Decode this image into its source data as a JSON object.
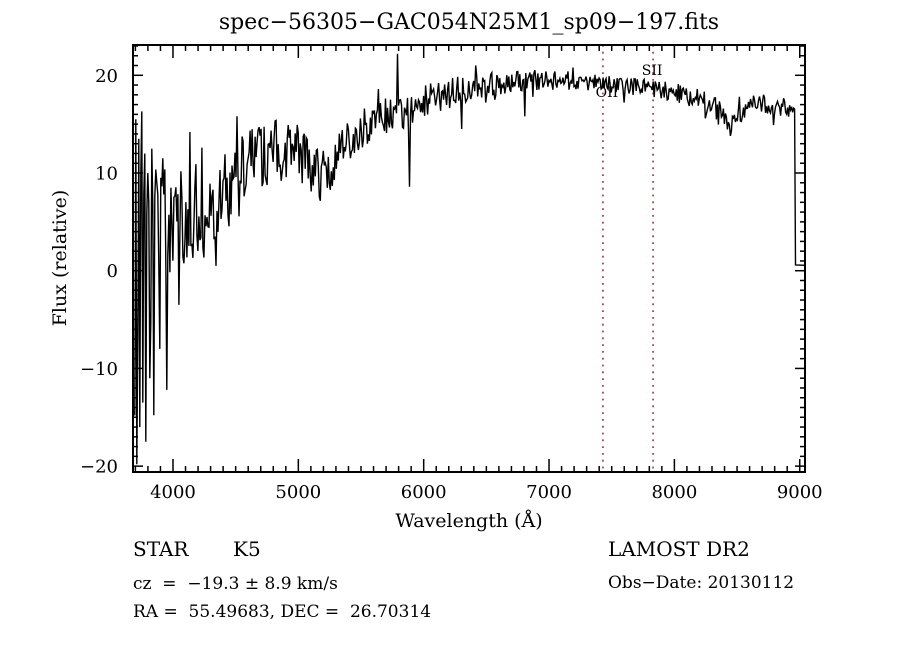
{
  "figure": {
    "background": "#ffffff",
    "foreground": "#000000"
  },
  "chart_data": {
    "type": "line",
    "title": "spec−56305−GAC054N25M1_sp09−197.fits",
    "xlabel": "Wavelength (Å)",
    "ylabel": "Flux (relative)",
    "x_ticks": [
      4000,
      5000,
      6000,
      7000,
      8000,
      9000
    ],
    "x_minor_step": 100,
    "y_ticks": [
      -20,
      -10,
      0,
      10,
      20
    ],
    "y_minor_step": 1,
    "xlim": [
      3681,
      9042
    ],
    "ylim": [
      -20.6,
      23.1
    ],
    "grid": false,
    "legend": "none",
    "line_color": "#000000",
    "reference_lines": {
      "color": "#993333",
      "style": "dotted",
      "items": [
        {
          "label": "OII",
          "wavelength": 7430
        },
        {
          "label": "SII",
          "wavelength": 7830
        }
      ]
    },
    "spectrum": {
      "description": "Noisy stellar spectrum: strong noise at blue end spanning nearly full flux range, rising continuum peaking ~19.5 near 6800-7400 A, gentle decline to ~16.5 at 9000 A, sharp drop to ~0.6 at the red edge.",
      "seed": 1987,
      "start": 3695,
      "step": 8,
      "loop_end": 8959,
      "tail_x": 8966,
      "tail_y": 0.6,
      "end_x": 9042,
      "clamp": [
        -20.4,
        22.9
      ],
      "continuum": [
        [
          3695,
          0
        ],
        [
          3720,
          1
        ],
        [
          3760,
          2.5
        ],
        [
          3800,
          3.2
        ],
        [
          3850,
          3.8
        ],
        [
          3900,
          4.2
        ],
        [
          3950,
          4.6
        ],
        [
          4000,
          5
        ],
        [
          4080,
          5.4
        ],
        [
          4160,
          5.8
        ],
        [
          4240,
          6.2
        ],
        [
          4320,
          6.8
        ],
        [
          4400,
          7.6
        ],
        [
          4480,
          8.8
        ],
        [
          4560,
          10
        ],
        [
          4640,
          11
        ],
        [
          4720,
          11.8
        ],
        [
          4800,
          12.3
        ],
        [
          4880,
          12.5
        ],
        [
          4960,
          12.4
        ],
        [
          5040,
          11.6
        ],
        [
          5120,
          10.3
        ],
        [
          5180,
          9.6
        ],
        [
          5240,
          10.2
        ],
        [
          5320,
          11.8
        ],
        [
          5400,
          13
        ],
        [
          5480,
          14.2
        ],
        [
          5560,
          14.9
        ],
        [
          5640,
          15.3
        ],
        [
          5720,
          15.8
        ],
        [
          5800,
          16.4
        ],
        [
          5880,
          16.6
        ],
        [
          5960,
          17.1
        ],
        [
          6040,
          17.4
        ],
        [
          6120,
          17.7
        ],
        [
          6200,
          18.1
        ],
        [
          6280,
          18.4
        ],
        [
          6360,
          18.6
        ],
        [
          6440,
          18.8
        ],
        [
          6520,
          19
        ],
        [
          6600,
          19.2
        ],
        [
          6700,
          19.4
        ],
        [
          6800,
          19.5
        ],
        [
          6900,
          19.5
        ],
        [
          7000,
          19.5
        ],
        [
          7100,
          19.4
        ],
        [
          7200,
          19.4
        ],
        [
          7300,
          19.3
        ],
        [
          7400,
          19.2
        ],
        [
          7500,
          19.1
        ],
        [
          7600,
          18.9
        ],
        [
          7700,
          18.8
        ],
        [
          7800,
          18.7
        ],
        [
          7900,
          18.5
        ],
        [
          8000,
          18.2
        ],
        [
          8100,
          17.9
        ],
        [
          8200,
          17.5
        ],
        [
          8300,
          16.8
        ],
        [
          8400,
          15.6
        ],
        [
          8480,
          15.3
        ],
        [
          8560,
          16.2
        ],
        [
          8640,
          16.9
        ],
        [
          8720,
          17
        ],
        [
          8800,
          16.5
        ],
        [
          8880,
          16.8
        ],
        [
          8959,
          16.5
        ]
      ],
      "noise_amp": [
        [
          3695,
          15
        ],
        [
          3730,
          13
        ],
        [
          3770,
          11
        ],
        [
          3810,
          9.5
        ],
        [
          3860,
          8.5
        ],
        [
          3910,
          7.5
        ],
        [
          3960,
          6.8
        ],
        [
          4020,
          6.2
        ],
        [
          4100,
          5.6
        ],
        [
          4200,
          5.2
        ],
        [
          4300,
          4.9
        ],
        [
          4400,
          4.6
        ],
        [
          4500,
          4.2
        ],
        [
          4600,
          3.8
        ],
        [
          4700,
          3.4
        ],
        [
          4800,
          3.1
        ],
        [
          4900,
          3
        ],
        [
          5000,
          2.9
        ],
        [
          5100,
          2.8
        ],
        [
          5200,
          2.6
        ],
        [
          5300,
          2.5
        ],
        [
          5400,
          2.3
        ],
        [
          5500,
          2.2
        ],
        [
          5600,
          2.1
        ],
        [
          5700,
          2
        ],
        [
          5800,
          2
        ],
        [
          5900,
          1.8
        ],
        [
          6000,
          1.8
        ],
        [
          6100,
          1.7
        ],
        [
          6200,
          1.6
        ],
        [
          6300,
          1.5
        ],
        [
          6400,
          1.4
        ],
        [
          6500,
          1.3
        ],
        [
          6600,
          1.2
        ],
        [
          6800,
          1.1
        ],
        [
          7000,
          1
        ],
        [
          7200,
          1
        ],
        [
          7400,
          0.9
        ],
        [
          7600,
          0.9
        ],
        [
          7800,
          0.9
        ],
        [
          8000,
          1
        ],
        [
          8200,
          1.1
        ],
        [
          8350,
          1.3
        ],
        [
          8500,
          1.2
        ],
        [
          8700,
          1.1
        ],
        [
          8850,
          1.2
        ],
        [
          8959,
          0.9
        ]
      ],
      "features": [
        [
          3703,
          15.5,
          7
        ],
        [
          3711,
          -19.8,
          7
        ],
        [
          3727,
          13.5,
          7
        ],
        [
          3735,
          -16,
          7
        ],
        [
          3751,
          16.3,
          7
        ],
        [
          3759,
          -13.5,
          7
        ],
        [
          3775,
          12,
          7
        ],
        [
          3783,
          -17.5,
          7
        ],
        [
          3799,
          10,
          6
        ],
        [
          3815,
          -11,
          6
        ],
        [
          3831,
          12.5,
          6
        ],
        [
          3847,
          -14.8,
          7
        ],
        [
          3871,
          9,
          6
        ],
        [
          3895,
          -8,
          6
        ],
        [
          3919,
          11.5,
          6
        ],
        [
          3951,
          -12.2,
          7
        ],
        [
          3983,
          8.5,
          6
        ],
        [
          4047,
          -3.5,
          6
        ],
        [
          4135,
          14.2,
          7
        ],
        [
          4231,
          12.6,
          6
        ],
        [
          4343,
          0.5,
          7
        ],
        [
          4511,
          15.8,
          7
        ],
        [
          4863,
          9.2,
          7
        ],
        [
          5167,
          7.6,
          9
        ],
        [
          5639,
          18.6,
          7
        ],
        [
          5791,
          22.2,
          8
        ],
        [
          5887,
          8.6,
          10
        ],
        [
          6303,
          14.5,
          8
        ],
        [
          6415,
          21,
          6
        ],
        [
          6495,
          17.2,
          6
        ],
        [
          6567,
          17.5,
          6
        ],
        [
          6807,
          15.8,
          7
        ],
        [
          6871,
          17.8,
          6
        ],
        [
          7191,
          20.8,
          6
        ],
        [
          7599,
          17.2,
          7
        ],
        [
          8247,
          15.6,
          8
        ],
        [
          8447,
          13.8,
          14
        ],
        [
          8519,
          17.8,
          9
        ],
        [
          8791,
          14.9,
          8
        ]
      ]
    }
  },
  "annotations": {
    "class_label": "STAR",
    "subclass": "K5",
    "survey": "LAMOST DR2",
    "cz": "cz  =  −19.3 ± 8.9 km/s",
    "obs_date": "Obs−Date: 20130112",
    "ra_dec": "RA =  55.49683, DEC =  26.70314"
  }
}
